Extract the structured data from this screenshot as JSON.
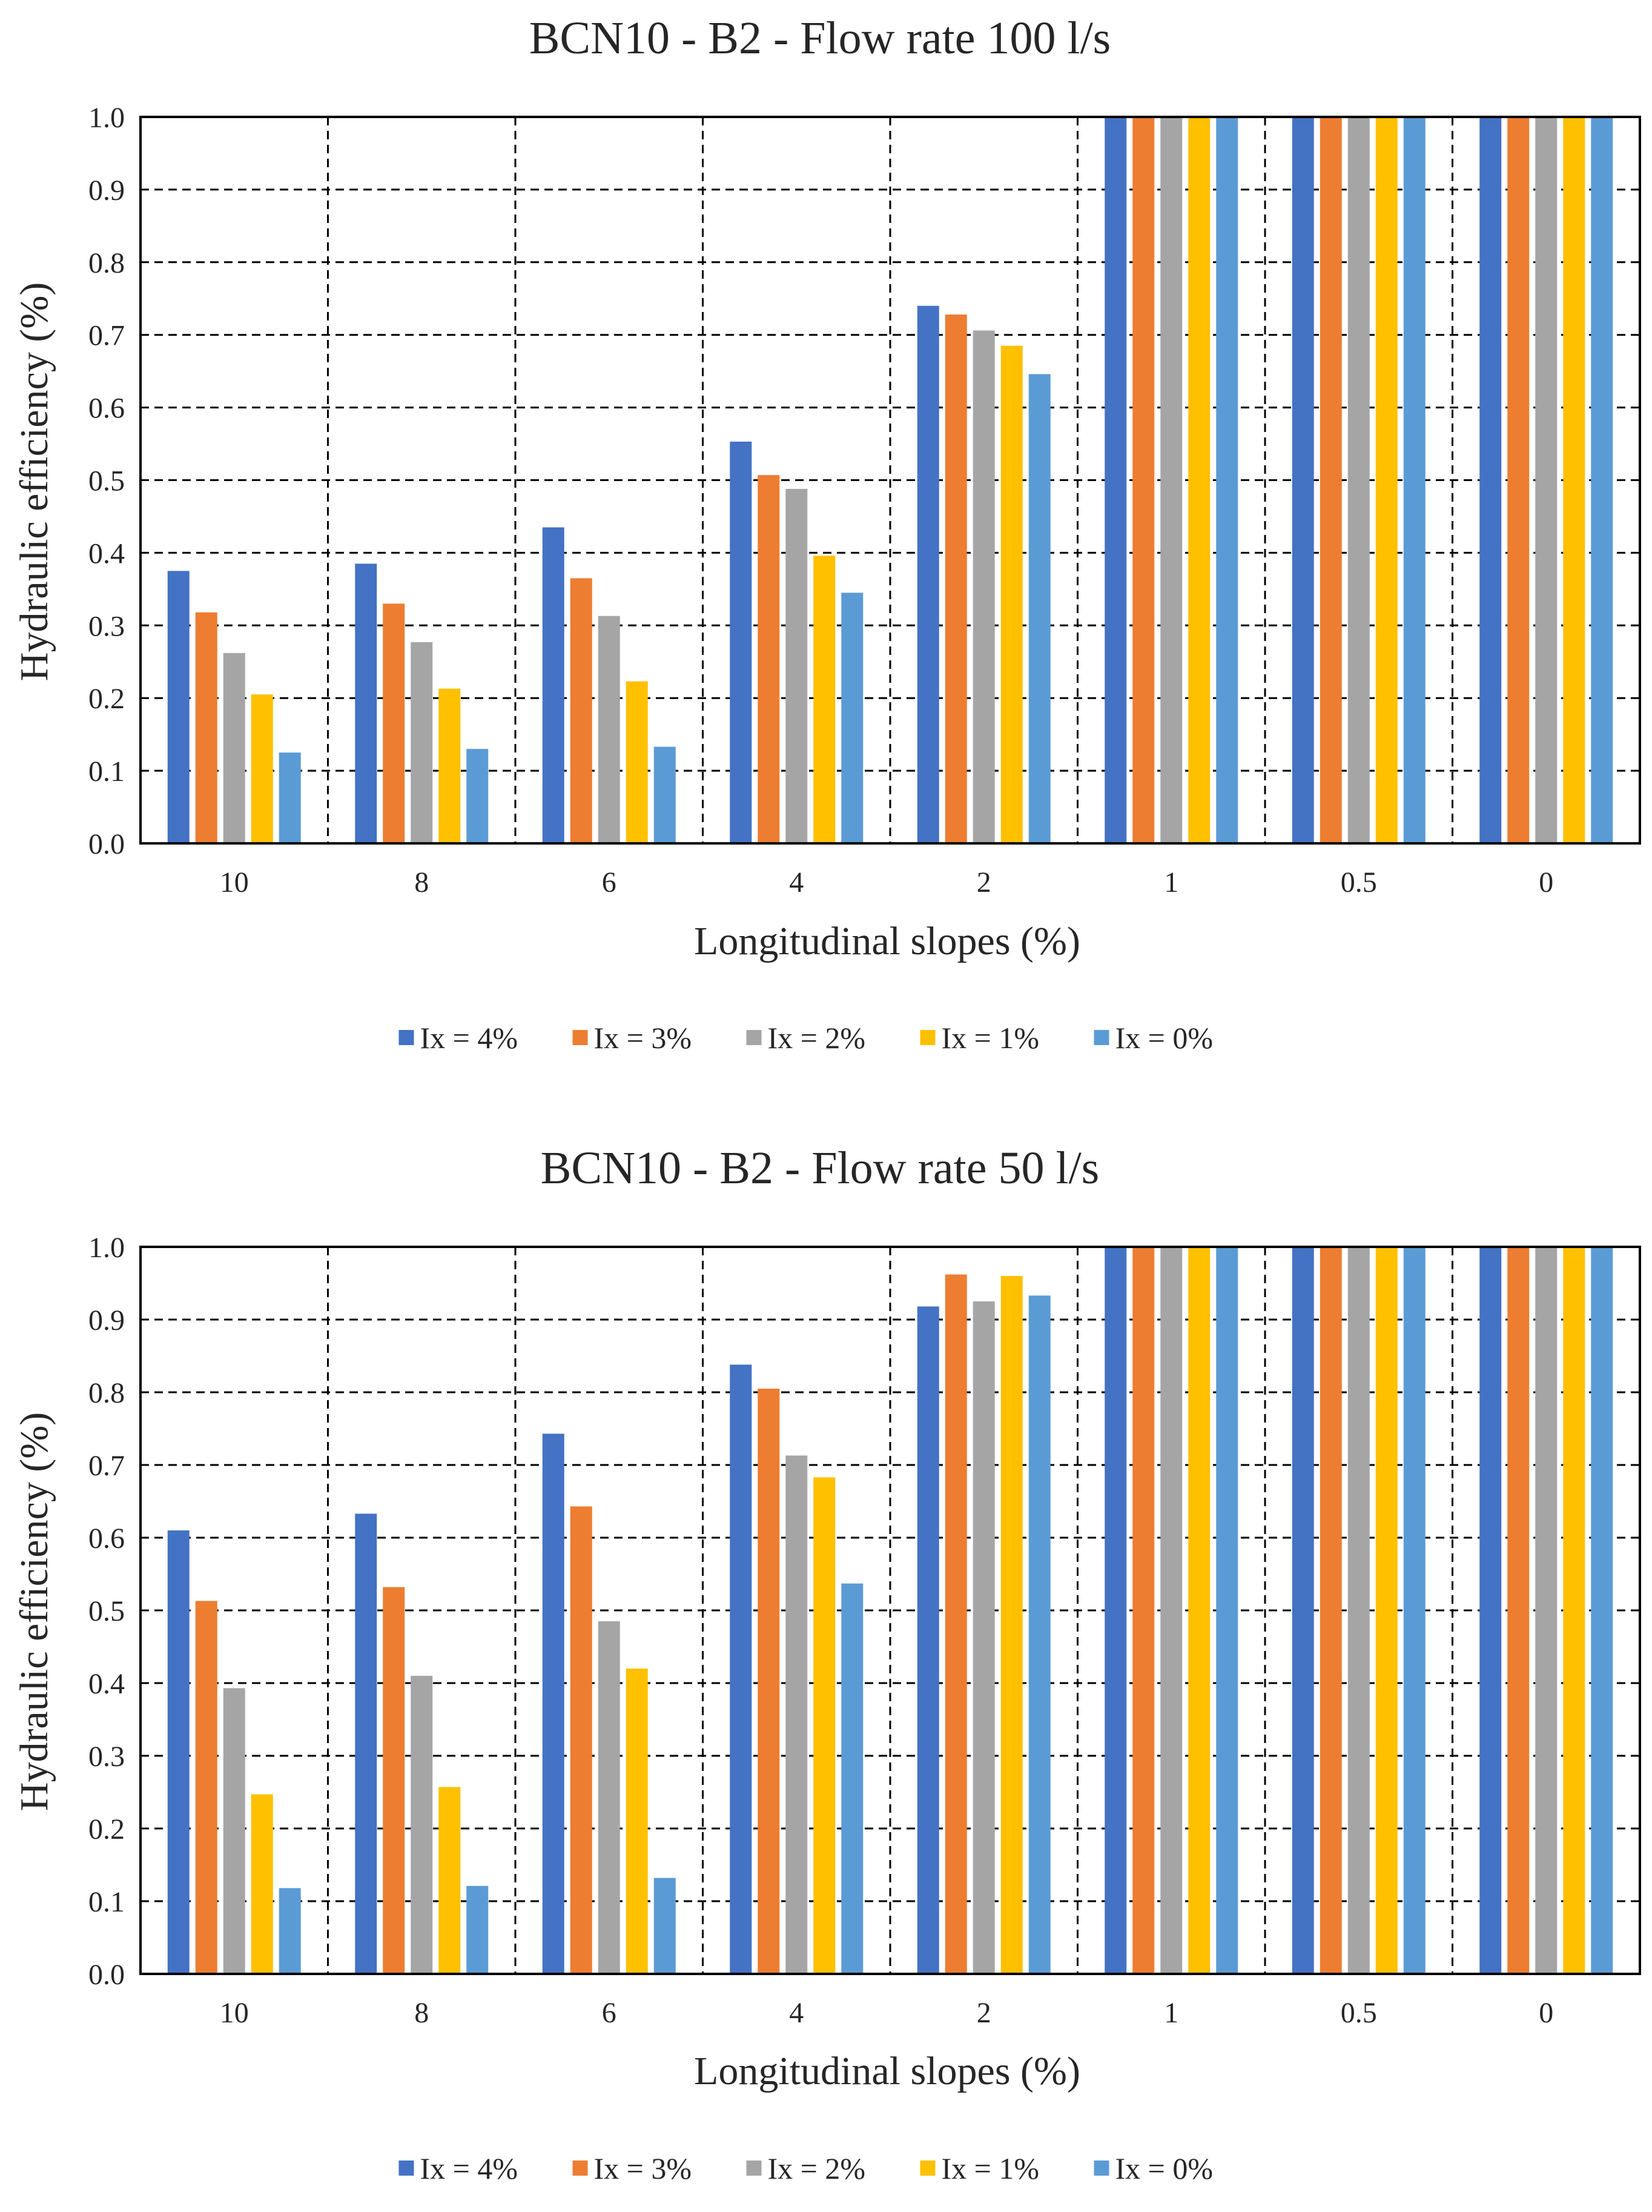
{
  "legend_series": [
    "Ix = 4%",
    "Ix = 3%",
    "Ix = 2%",
    "Ix = 1%",
    "Ix = 0%"
  ],
  "series_colors": [
    "#4472C4",
    "#ED7D31",
    "#A5A5A5",
    "#FFC000",
    "#5B9BD5"
  ],
  "chart_data": [
    {
      "type": "bar",
      "title": "BCN10 - B2 - Flow rate 100 l/s",
      "xlabel": "Longitudinal slopes (%)",
      "ylabel": "Hydraulic efficiency  (%)",
      "ylim": [
        0,
        1.0
      ],
      "yticks": [
        "0.0",
        "0.1",
        "0.2",
        "0.3",
        "0.4",
        "0.5",
        "0.6",
        "0.7",
        "0.8",
        "0.9",
        "1.0"
      ],
      "grid": true,
      "legend": "bottom",
      "categories": [
        "10",
        "8",
        "6",
        "4",
        "2",
        "1",
        "0.5",
        "0"
      ],
      "series": [
        {
          "name": "Ix = 4%",
          "values": [
            0.375,
            0.385,
            0.435,
            0.553,
            0.74,
            1.0,
            1.0,
            1.0
          ]
        },
        {
          "name": "Ix = 3%",
          "values": [
            0.318,
            0.33,
            0.365,
            0.507,
            0.728,
            1.0,
            1.0,
            1.0
          ]
        },
        {
          "name": "Ix = 2%",
          "values": [
            0.262,
            0.277,
            0.313,
            0.488,
            0.706,
            1.0,
            1.0,
            1.0
          ]
        },
        {
          "name": "Ix = 1%",
          "values": [
            0.205,
            0.213,
            0.223,
            0.396,
            0.685,
            1.0,
            1.0,
            1.0
          ]
        },
        {
          "name": "Ix = 0%",
          "values": [
            0.125,
            0.13,
            0.133,
            0.345,
            0.646,
            1.0,
            1.0,
            1.0
          ]
        }
      ]
    },
    {
      "type": "bar",
      "title": "BCN10 - B2 - Flow rate 50 l/s",
      "xlabel": "Longitudinal slopes (%)",
      "ylabel": "Hydraulic efficiency  (%)",
      "ylim": [
        0,
        1.0
      ],
      "yticks": [
        "0.0",
        "0.1",
        "0.2",
        "0.3",
        "0.4",
        "0.5",
        "0.6",
        "0.7",
        "0.8",
        "0.9",
        "1.0"
      ],
      "grid": true,
      "legend": "bottom",
      "categories": [
        "10",
        "8",
        "6",
        "4",
        "2",
        "1",
        "0.5",
        "0"
      ],
      "series": [
        {
          "name": "Ix = 4%",
          "values": [
            0.61,
            0.633,
            0.743,
            0.838,
            0.918,
            1.0,
            1.0,
            1.0
          ]
        },
        {
          "name": "Ix = 3%",
          "values": [
            0.513,
            0.532,
            0.643,
            0.805,
            0.962,
            1.0,
            1.0,
            1.0
          ]
        },
        {
          "name": "Ix = 2%",
          "values": [
            0.393,
            0.41,
            0.485,
            0.713,
            0.925,
            1.0,
            1.0,
            1.0
          ]
        },
        {
          "name": "Ix = 1%",
          "values": [
            0.247,
            0.257,
            0.42,
            0.683,
            0.96,
            1.0,
            1.0,
            1.0
          ]
        },
        {
          "name": "Ix = 0%",
          "values": [
            0.118,
            0.121,
            0.132,
            0.537,
            0.933,
            1.0,
            1.0,
            1.0
          ]
        }
      ]
    }
  ]
}
